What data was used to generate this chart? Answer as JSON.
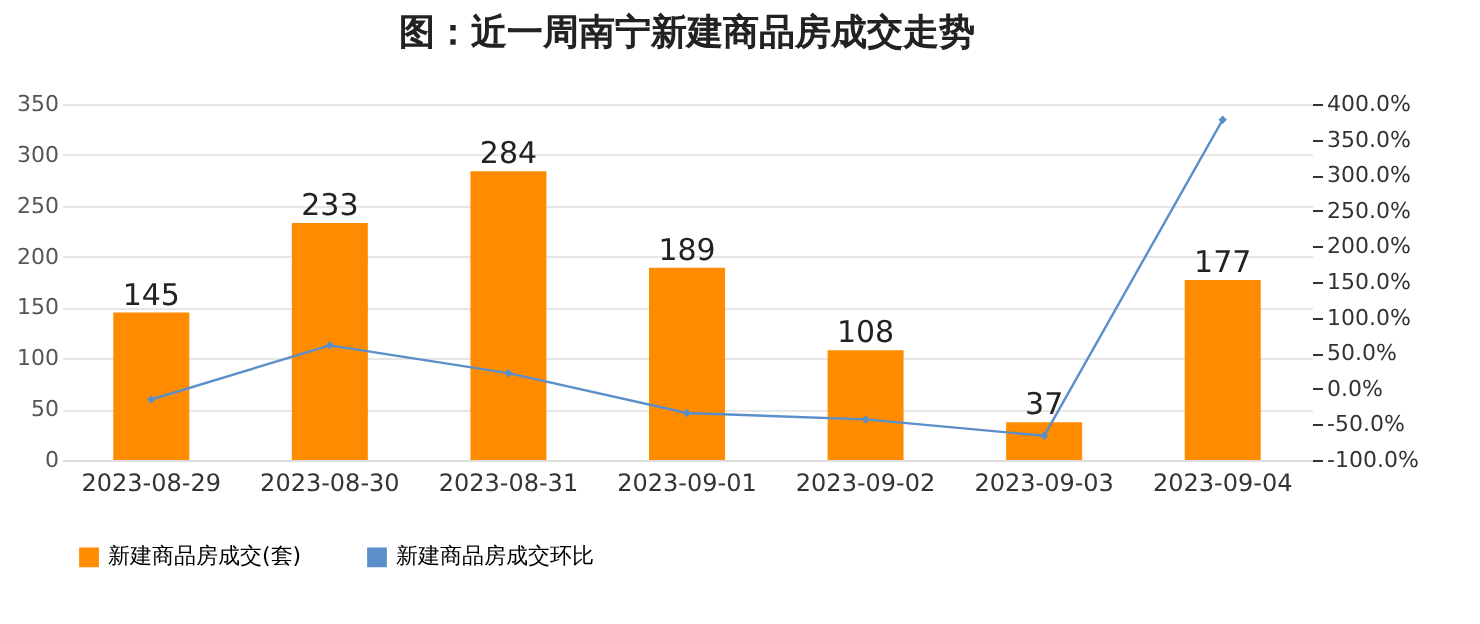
{
  "chart_data": {
    "type": "bar",
    "title": "图：近一周南宁新建商品房成交走势",
    "categories": [
      "2023-08-29",
      "2023-08-30",
      "2023-08-31",
      "2023-09-01",
      "2023-09-02",
      "2023-09-03",
      "2023-09-04"
    ],
    "series": [
      {
        "name": "新建商品房成交(套)",
        "color": "#ff8c00",
        "values": [
          145,
          233,
          284,
          189,
          108,
          37,
          177
        ],
        "value_labels": [
          "145",
          "233",
          "284",
          "189",
          "108",
          "37",
          "177"
        ]
      },
      {
        "name": "新建商品房成交环比",
        "type": "line",
        "axis": "y2",
        "color": "#5b8fc9",
        "values": [
          -15,
          61,
          22,
          -34,
          -43,
          -66,
          378
        ]
      }
    ],
    "ylim": [
      0,
      350
    ],
    "yticks": [
      0,
      50,
      100,
      150,
      200,
      250,
      300,
      350
    ],
    "y2lim": [
      -100,
      400
    ],
    "y2ticks": [
      {
        "value": -100,
        "label": "-100.0%"
      },
      {
        "value": -50,
        "label": "-50.0%"
      },
      {
        "value": 0,
        "label": "0.0%"
      },
      {
        "value": 50,
        "label": "50.0%"
      },
      {
        "value": 100,
        "label": "100.0%"
      },
      {
        "value": 150,
        "label": "150.0%"
      },
      {
        "value": 200,
        "label": "200.0%"
      },
      {
        "value": 250,
        "label": "250.0%"
      },
      {
        "value": 300,
        "label": "300.0%"
      },
      {
        "value": 350,
        "label": "350.0%"
      },
      {
        "value": 400,
        "label": "400.0%"
      }
    ],
    "grid": "y",
    "legend": "bottom",
    "marker": "diamond"
  }
}
